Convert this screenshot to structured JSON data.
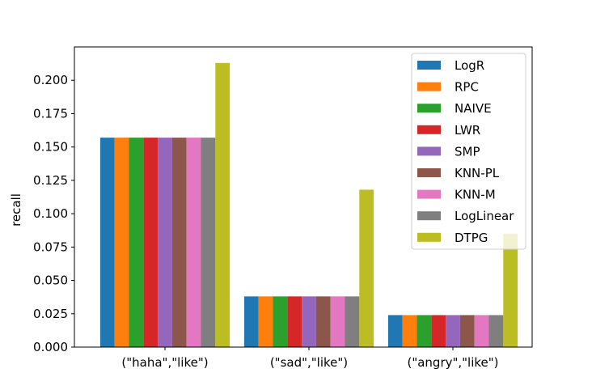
{
  "chart_data": {
    "type": "bar",
    "title": "",
    "xlabel": "",
    "ylabel": "recall",
    "ylim": [
      0,
      0.225
    ],
    "yticks": [
      "0.000",
      "0.025",
      "0.050",
      "0.075",
      "0.100",
      "0.125",
      "0.150",
      "0.175",
      "0.200"
    ],
    "categories": [
      "(\"haha\",\"like\")",
      "(\"sad\",\"like\")",
      "(\"angry\",\"like\")"
    ],
    "grid": false,
    "legend_position": "top-right",
    "series": [
      {
        "name": "LogR",
        "color": "#1f77b4",
        "values": [
          0.157,
          0.038,
          0.024
        ]
      },
      {
        "name": "RPC",
        "color": "#ff7f0e",
        "values": [
          0.157,
          0.038,
          0.024
        ]
      },
      {
        "name": "NAIVE",
        "color": "#2ca02c",
        "values": [
          0.157,
          0.038,
          0.024
        ]
      },
      {
        "name": "LWR",
        "color": "#d62728",
        "values": [
          0.157,
          0.038,
          0.024
        ]
      },
      {
        "name": "SMP",
        "color": "#9467bd",
        "values": [
          0.157,
          0.038,
          0.024
        ]
      },
      {
        "name": "KNN-PL",
        "color": "#8c564b",
        "values": [
          0.157,
          0.038,
          0.024
        ]
      },
      {
        "name": "KNN-M",
        "color": "#e377c2",
        "values": [
          0.157,
          0.038,
          0.024
        ]
      },
      {
        "name": "LogLinear",
        "color": "#7f7f7f",
        "values": [
          0.157,
          0.038,
          0.024
        ]
      },
      {
        "name": "DTPG",
        "color": "#bcbd22",
        "values": [
          0.213,
          0.118,
          0.085
        ]
      }
    ]
  }
}
